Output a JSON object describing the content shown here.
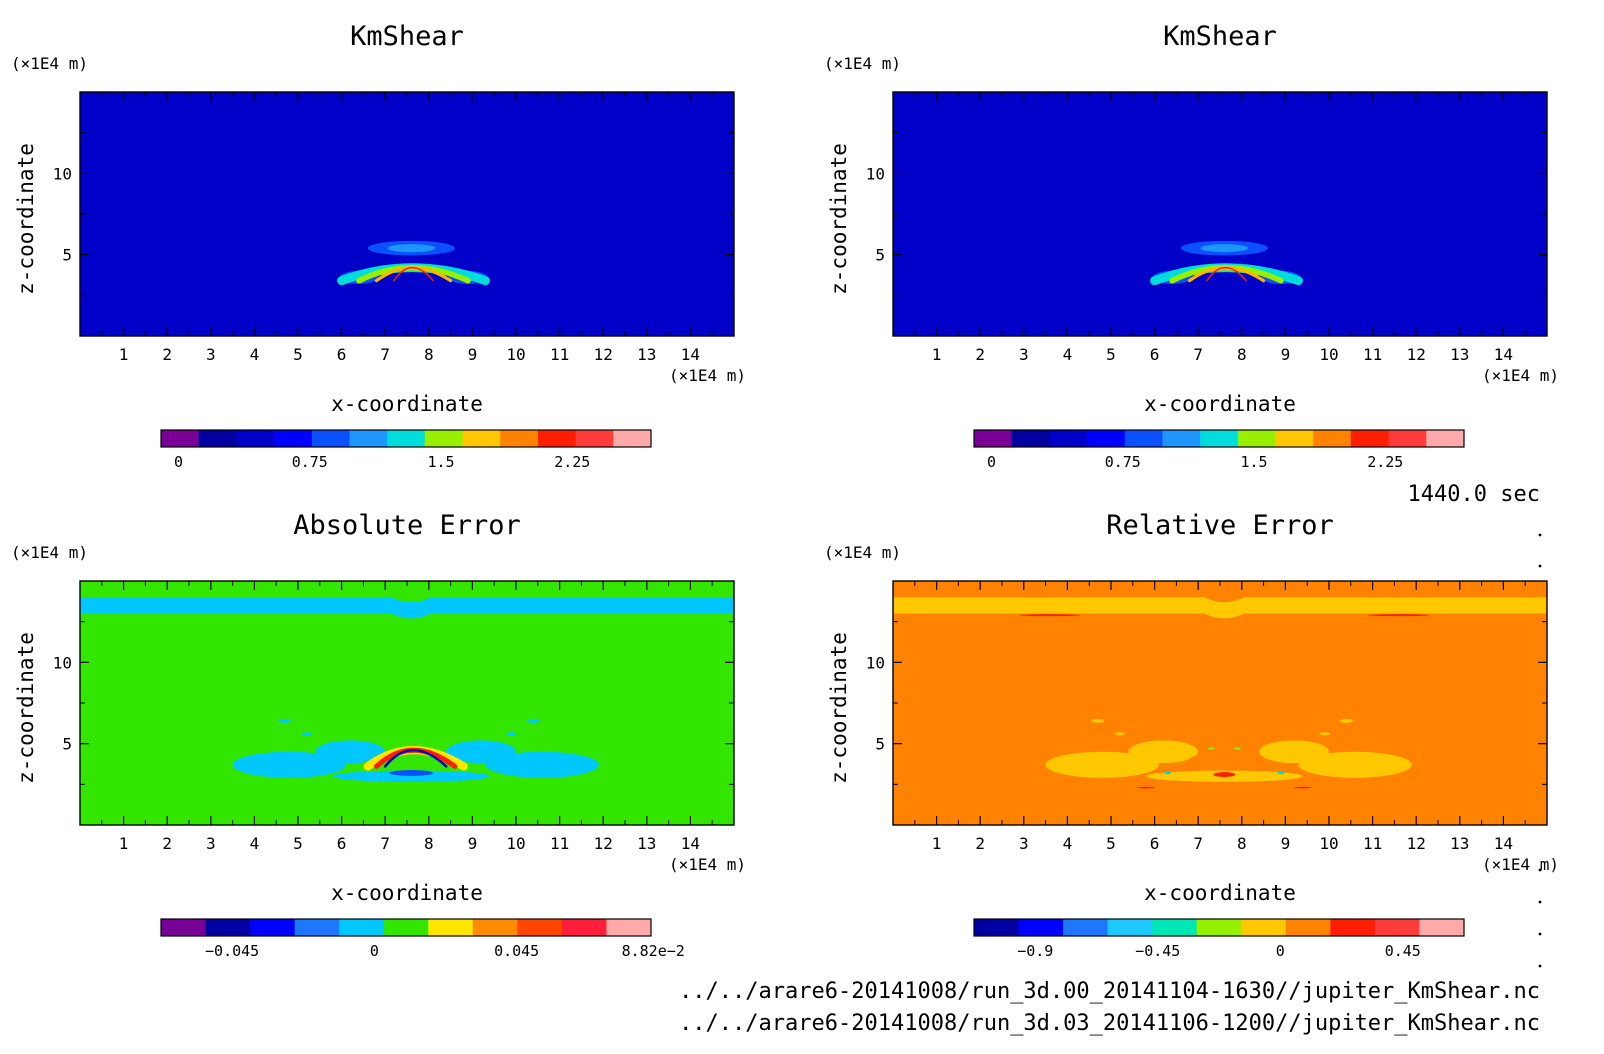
{
  "figure": {
    "time_label": "1440.0 sec",
    "files": [
      "../../arare6-20141008/run_3d.00_20141104-1630//jupiter_KmShear.nc",
      "../../arare6-20141008/run_3d.03_20141106-1200//jupiter_KmShear.nc"
    ]
  },
  "chart_data": [
    {
      "id": "kmshear-1",
      "type": "heatmap",
      "title": "KmShear",
      "xlabel": "x-coordinate",
      "ylabel": "z-coordinate",
      "x_unit": "(×1E4 m)",
      "z_unit": "(×1E4 m)",
      "xlim": [
        0,
        15
      ],
      "zlim": [
        0,
        15
      ],
      "x_ticks": [
        1,
        2,
        3,
        4,
        5,
        6,
        7,
        8,
        9,
        10,
        11,
        12,
        13,
        14
      ],
      "z_ticks": [
        5,
        10
      ],
      "background_color": "#0000c8",
      "features": [
        {
          "shape": "ellipse",
          "x": 7.6,
          "z": 5.4,
          "rx": 1.0,
          "rz": 0.45,
          "color": "#0a50ff"
        },
        {
          "shape": "ellipse",
          "x": 7.6,
          "z": 5.4,
          "rx": 0.55,
          "rz": 0.25,
          "color": "#1e96ff"
        },
        {
          "shape": "ellipse",
          "x": 6.4,
          "z": 3.6,
          "rx": 0.45,
          "rz": 0.4,
          "color": "#0a50ff"
        },
        {
          "shape": "ellipse",
          "x": 8.9,
          "z": 3.6,
          "rx": 0.45,
          "rz": 0.4,
          "color": "#0a50ff"
        },
        {
          "shape": "ridge",
          "z_base": 3.4,
          "z_peak": 4.2,
          "x_left": 6.0,
          "x_right": 9.3,
          "x_peak": 7.6,
          "color": "#00dcdc",
          "width": 0.55
        },
        {
          "shape": "ridge",
          "z_base": 3.4,
          "z_peak": 4.2,
          "x_left": 6.4,
          "x_right": 8.9,
          "x_peak": 7.6,
          "color": "#96f000",
          "width": 0.35
        },
        {
          "shape": "ridge",
          "z_base": 3.4,
          "z_peak": 4.2,
          "x_left": 6.8,
          "x_right": 8.5,
          "x_peak": 7.6,
          "color": "#ffb400",
          "width": 0.2
        },
        {
          "shape": "ridge",
          "z_base": 3.4,
          "z_peak": 4.2,
          "x_left": 7.2,
          "x_right": 8.1,
          "x_peak": 7.6,
          "color": "#ff1e00",
          "width": 0.08
        }
      ],
      "colorbar": {
        "colors": [
          "#780096",
          "#0000a0",
          "#0000c8",
          "#0000ff",
          "#0a50ff",
          "#1e96ff",
          "#00dcdc",
          "#96f000",
          "#ffc800",
          "#ff8200",
          "#ff1e00",
          "#ff3c3c",
          "#ffaaaa"
        ],
        "range": [
          -0.1,
          2.7
        ],
        "tick_values": [
          0,
          0.75,
          1.5,
          2.25
        ],
        "tick_labels": [
          "0",
          "0.75",
          "1.5",
          "2.25"
        ]
      }
    },
    {
      "id": "kmshear-2",
      "type": "heatmap",
      "title": "KmShear",
      "xlabel": "x-coordinate",
      "ylabel": "z-coordinate",
      "x_unit": "(×1E4 m)",
      "z_unit": "(×1E4 m)",
      "xlim": [
        0,
        15
      ],
      "zlim": [
        0,
        15
      ],
      "x_ticks": [
        1,
        2,
        3,
        4,
        5,
        6,
        7,
        8,
        9,
        10,
        11,
        12,
        13,
        14
      ],
      "z_ticks": [
        5,
        10
      ],
      "background_color": "#0000c8",
      "features": [
        {
          "shape": "ellipse",
          "x": 7.6,
          "z": 5.4,
          "rx": 1.0,
          "rz": 0.45,
          "color": "#0a50ff"
        },
        {
          "shape": "ellipse",
          "x": 7.6,
          "z": 5.4,
          "rx": 0.55,
          "rz": 0.25,
          "color": "#1e96ff"
        },
        {
          "shape": "ellipse",
          "x": 6.4,
          "z": 3.6,
          "rx": 0.45,
          "rz": 0.4,
          "color": "#0a50ff"
        },
        {
          "shape": "ellipse",
          "x": 8.9,
          "z": 3.6,
          "rx": 0.45,
          "rz": 0.4,
          "color": "#0a50ff"
        },
        {
          "shape": "ridge",
          "z_base": 3.4,
          "z_peak": 4.2,
          "x_left": 6.0,
          "x_right": 9.3,
          "x_peak": 7.6,
          "color": "#00dcdc",
          "width": 0.55
        },
        {
          "shape": "ridge",
          "z_base": 3.4,
          "z_peak": 4.2,
          "x_left": 6.4,
          "x_right": 8.9,
          "x_peak": 7.6,
          "color": "#96f000",
          "width": 0.35
        },
        {
          "shape": "ridge",
          "z_base": 3.4,
          "z_peak": 4.2,
          "x_left": 6.8,
          "x_right": 8.5,
          "x_peak": 7.6,
          "color": "#ffb400",
          "width": 0.2
        },
        {
          "shape": "ridge",
          "z_base": 3.4,
          "z_peak": 4.2,
          "x_left": 7.2,
          "x_right": 8.1,
          "x_peak": 7.6,
          "color": "#ff1e00",
          "width": 0.08
        }
      ],
      "colorbar": {
        "colors": [
          "#780096",
          "#0000a0",
          "#0000c8",
          "#0000ff",
          "#0a50ff",
          "#1e96ff",
          "#00dcdc",
          "#96f000",
          "#ffc800",
          "#ff8200",
          "#ff1e00",
          "#ff3c3c",
          "#ffaaaa"
        ],
        "range": [
          -0.1,
          2.7
        ],
        "tick_values": [
          0,
          0.75,
          1.5,
          2.25
        ],
        "tick_labels": [
          "0",
          "0.75",
          "1.5",
          "2.25"
        ]
      }
    },
    {
      "id": "absolute-error",
      "type": "heatmap",
      "title": "Absolute Error",
      "xlabel": "x-coordinate",
      "ylabel": "z-coordinate",
      "x_unit": "(×1E4 m)",
      "z_unit": "(×1E4 m)",
      "xlim": [
        0,
        15
      ],
      "zlim": [
        0,
        15
      ],
      "x_ticks": [
        1,
        2,
        3,
        4,
        5,
        6,
        7,
        8,
        9,
        10,
        11,
        12,
        13,
        14
      ],
      "z_ticks": [
        5,
        10
      ],
      "background_color": "#32e600",
      "features": [
        {
          "shape": "band",
          "z_low": 13.0,
          "z_high": 14.0,
          "dip_x": 7.6,
          "dip": 0.3,
          "color": "#00c8ff"
        },
        {
          "shape": "ellipse",
          "x": 4.8,
          "z": 3.7,
          "rx": 1.3,
          "rz": 0.8,
          "color": "#00c8ff"
        },
        {
          "shape": "ellipse",
          "x": 10.6,
          "z": 3.7,
          "rx": 1.3,
          "rz": 0.8,
          "color": "#00c8ff"
        },
        {
          "shape": "ellipse",
          "x": 6.2,
          "z": 4.5,
          "rx": 0.8,
          "rz": 0.7,
          "color": "#00c8ff"
        },
        {
          "shape": "ellipse",
          "x": 9.2,
          "z": 4.5,
          "rx": 0.8,
          "rz": 0.7,
          "color": "#00c8ff"
        },
        {
          "shape": "ellipse",
          "x": 7.6,
          "z": 3.0,
          "rx": 1.8,
          "rz": 0.35,
          "color": "#00c8ff"
        },
        {
          "shape": "ellipse",
          "x": 4.7,
          "z": 6.4,
          "rx": 0.15,
          "rz": 0.12,
          "color": "#00c8ff"
        },
        {
          "shape": "ellipse",
          "x": 5.2,
          "z": 5.6,
          "rx": 0.12,
          "rz": 0.1,
          "color": "#00c8ff"
        },
        {
          "shape": "ellipse",
          "x": 10.4,
          "z": 6.4,
          "rx": 0.15,
          "rz": 0.12,
          "color": "#00c8ff"
        },
        {
          "shape": "ellipse",
          "x": 9.9,
          "z": 5.6,
          "rx": 0.12,
          "rz": 0.1,
          "color": "#00c8ff"
        },
        {
          "shape": "ridge",
          "z_base": 3.6,
          "z_peak": 4.6,
          "x_left": 6.6,
          "x_right": 8.8,
          "x_peak": 7.6,
          "color": "#ffe600",
          "width": 0.5
        },
        {
          "shape": "ridge",
          "z_base": 3.6,
          "z_peak": 4.6,
          "x_left": 6.8,
          "x_right": 8.6,
          "x_peak": 7.6,
          "color": "#ff1e00",
          "width": 0.3
        },
        {
          "shape": "ridge",
          "z_base": 3.6,
          "z_peak": 4.6,
          "x_left": 7.0,
          "x_right": 8.4,
          "x_peak": 7.6,
          "color": "#0000c8",
          "width": 0.15
        },
        {
          "shape": "ellipse",
          "x": 7.6,
          "z": 3.2,
          "rx": 0.5,
          "rz": 0.18,
          "color": "#0a50ff"
        }
      ],
      "colorbar": {
        "colors": [
          "#780096",
          "#0000a0",
          "#0000ff",
          "#1e78ff",
          "#00c8ff",
          "#32e600",
          "#ffe600",
          "#ff8c00",
          "#ff4600",
          "#ff1e3c",
          "#ffaaaa"
        ],
        "range": [
          -0.0675,
          0.0875
        ],
        "tick_values": [
          -0.045,
          0,
          0.045,
          0.0882
        ],
        "tick_labels": [
          "−0.045",
          "0",
          "0.045",
          "8.82e−2"
        ]
      }
    },
    {
      "id": "relative-error",
      "type": "heatmap",
      "title": "Relative Error",
      "xlabel": "x-coordinate",
      "ylabel": "z-coordinate",
      "x_unit": "(×1E4 m)",
      "z_unit": "(×1E4 m)",
      "xlim": [
        0,
        15
      ],
      "zlim": [
        0,
        15
      ],
      "x_ticks": [
        1,
        2,
        3,
        4,
        5,
        6,
        7,
        8,
        9,
        10,
        11,
        12,
        13,
        14
      ],
      "z_ticks": [
        5,
        10
      ],
      "background_color": "#ff8200",
      "features": [
        {
          "shape": "band",
          "z_low": 13.0,
          "z_high": 14.0,
          "dip_x": 7.6,
          "dip": 0.3,
          "color": "#ffc800"
        },
        {
          "shape": "ellipse",
          "x": 3.6,
          "z": 12.9,
          "rx": 0.7,
          "rz": 0.06,
          "color": "#ff1e00"
        },
        {
          "shape": "ellipse",
          "x": 11.6,
          "z": 12.9,
          "rx": 0.7,
          "rz": 0.06,
          "color": "#ff1e00"
        },
        {
          "shape": "ellipse",
          "x": 4.8,
          "z": 3.7,
          "rx": 1.3,
          "rz": 0.8,
          "color": "#ffc800"
        },
        {
          "shape": "ellipse",
          "x": 10.6,
          "z": 3.7,
          "rx": 1.3,
          "rz": 0.8,
          "color": "#ffc800"
        },
        {
          "shape": "ellipse",
          "x": 6.2,
          "z": 4.5,
          "rx": 0.8,
          "rz": 0.7,
          "color": "#ffc800"
        },
        {
          "shape": "ellipse",
          "x": 9.2,
          "z": 4.5,
          "rx": 0.8,
          "rz": 0.7,
          "color": "#ffc800"
        },
        {
          "shape": "ellipse",
          "x": 7.6,
          "z": 3.0,
          "rx": 1.8,
          "rz": 0.35,
          "color": "#ffc800"
        },
        {
          "shape": "ellipse",
          "x": 4.7,
          "z": 6.4,
          "rx": 0.15,
          "rz": 0.12,
          "color": "#ffc800"
        },
        {
          "shape": "ellipse",
          "x": 5.2,
          "z": 5.6,
          "rx": 0.12,
          "rz": 0.1,
          "color": "#ffc800"
        },
        {
          "shape": "ellipse",
          "x": 10.4,
          "z": 6.4,
          "rx": 0.15,
          "rz": 0.12,
          "color": "#ffc800"
        },
        {
          "shape": "ellipse",
          "x": 9.9,
          "z": 5.6,
          "rx": 0.12,
          "rz": 0.1,
          "color": "#ffc800"
        },
        {
          "shape": "ridge",
          "z_base": 3.6,
          "z_peak": 4.5,
          "x_left": 6.6,
          "x_right": 8.8,
          "x_peak": 7.6,
          "color": "#ff8200",
          "width": 0.3
        },
        {
          "shape": "ellipse",
          "x": 7.6,
          "z": 3.1,
          "rx": 0.25,
          "rz": 0.15,
          "color": "#ff1e00"
        },
        {
          "shape": "ellipse",
          "x": 6.3,
          "z": 3.2,
          "rx": 0.08,
          "rz": 0.08,
          "color": "#00dcdc"
        },
        {
          "shape": "ellipse",
          "x": 8.9,
          "z": 3.2,
          "rx": 0.08,
          "rz": 0.08,
          "color": "#00dcdc"
        },
        {
          "shape": "ellipse",
          "x": 7.3,
          "z": 4.7,
          "rx": 0.08,
          "rz": 0.07,
          "color": "#96f000"
        },
        {
          "shape": "ellipse",
          "x": 7.9,
          "z": 4.7,
          "rx": 0.08,
          "rz": 0.07,
          "color": "#96f000"
        },
        {
          "shape": "ellipse",
          "x": 5.8,
          "z": 2.3,
          "rx": 0.2,
          "rz": 0.05,
          "color": "#ff1e00"
        },
        {
          "shape": "ellipse",
          "x": 9.4,
          "z": 2.3,
          "rx": 0.2,
          "rz": 0.05,
          "color": "#ff1e00"
        }
      ],
      "colorbar": {
        "colors": [
          "#0000a0",
          "#0000ff",
          "#1e78ff",
          "#1ec8ff",
          "#00e6b4",
          "#96f000",
          "#ffc800",
          "#ff8200",
          "#ff1e00",
          "#ff3c3c",
          "#ffaaaa"
        ],
        "range": [
          -1.125,
          0.675
        ],
        "tick_values": [
          -0.9,
          -0.45,
          0,
          0.45
        ],
        "tick_labels": [
          "−0.9",
          "−0.45",
          "0",
          "0.45"
        ]
      }
    }
  ]
}
